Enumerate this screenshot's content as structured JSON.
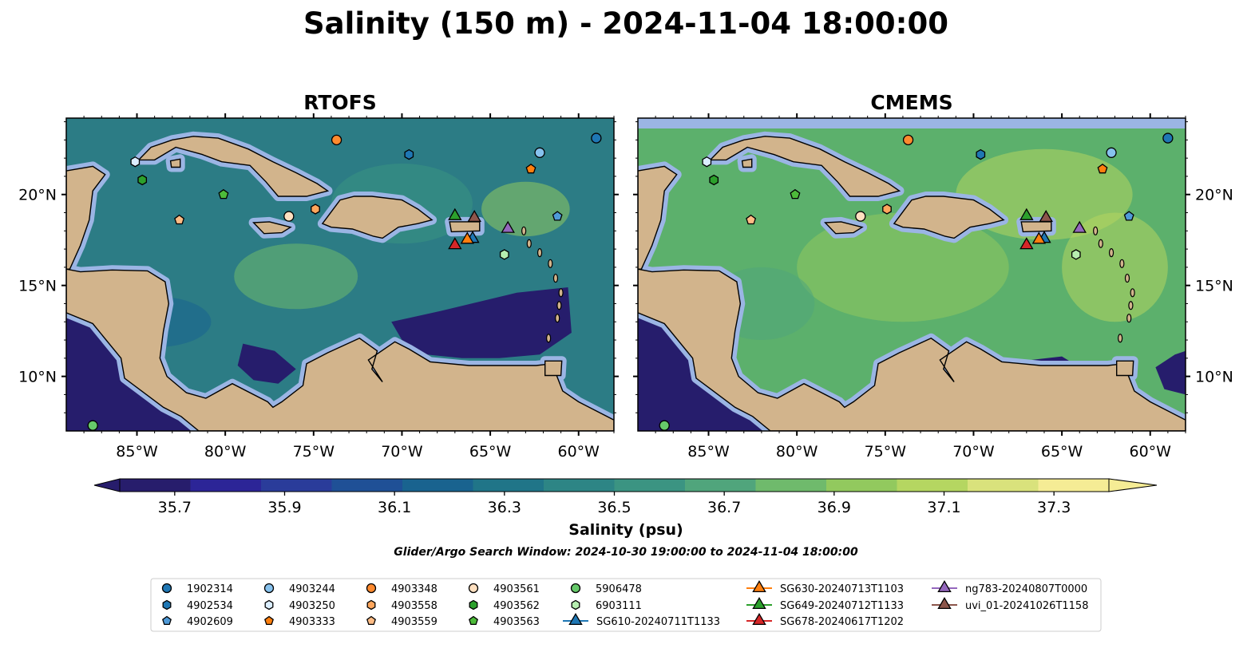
{
  "title": "Salinity (150 m) - 2024-11-04 18:00:00",
  "window_note": "Glider/Argo Search Window: 2024-10-30 19:00:00 to 2024-11-04 18:00:00",
  "extent": {
    "lon": [
      -89,
      -58
    ],
    "lat": [
      7,
      24.2
    ]
  },
  "colors": {
    "land": "#d2b48c",
    "shelf": "#9bb5e4",
    "deep_low": "#261d6c",
    "coast": "#000000",
    "river": "#a9c2e6"
  },
  "panels": [
    {
      "name": "RTOFS",
      "background": "#2c7c85"
    },
    {
      "name": "CMEMS",
      "background": "#5cb06c"
    }
  ],
  "lon_ticks": [
    {
      "value": -85,
      "label": "85°W"
    },
    {
      "value": -80,
      "label": "80°W"
    },
    {
      "value": -75,
      "label": "75°W"
    },
    {
      "value": -70,
      "label": "70°W"
    },
    {
      "value": -65,
      "label": "65°W"
    },
    {
      "value": -60,
      "label": "60°W"
    }
  ],
  "lat_ticks": [
    {
      "value": 10,
      "label": "10°N"
    },
    {
      "value": 15,
      "label": "15°N"
    },
    {
      "value": 20,
      "label": "20°N"
    }
  ],
  "colorbar": {
    "label": "Salinity (psu)",
    "min": 35.6,
    "max": 37.4,
    "step": 0.1,
    "ticks": [
      {
        "value": 35.7,
        "label": "35.7"
      },
      {
        "value": 35.9,
        "label": "35.9"
      },
      {
        "value": 36.1,
        "label": "36.1"
      },
      {
        "value": 36.3,
        "label": "36.3"
      },
      {
        "value": 36.5,
        "label": "36.5"
      },
      {
        "value": 36.7,
        "label": "36.7"
      },
      {
        "value": 36.9,
        "label": "36.9"
      },
      {
        "value": 37.1,
        "label": "37.1"
      },
      {
        "value": 37.3,
        "label": "37.3"
      }
    ],
    "colors": [
      "#271d6c",
      "#2c2597",
      "#2a3c9a",
      "#1f5096",
      "#19638f",
      "#207588",
      "#2d8585",
      "#3b9482",
      "#50a57c",
      "#6fba6c",
      "#92c95e",
      "#b5d661",
      "#d9e27c",
      "#f5ec95"
    ]
  },
  "land": {
    "cuba": [
      [
        -84.9,
        21.9
      ],
      [
        -84.2,
        22.6
      ],
      [
        -83.0,
        23.0
      ],
      [
        -81.8,
        23.2
      ],
      [
        -80.4,
        23.1
      ],
      [
        -78.7,
        22.5
      ],
      [
        -77.3,
        21.8
      ],
      [
        -76.0,
        21.2
      ],
      [
        -74.8,
        20.6
      ],
      [
        -74.2,
        20.2
      ],
      [
        -75.4,
        19.9
      ],
      [
        -77.0,
        19.9
      ],
      [
        -77.7,
        20.7
      ],
      [
        -78.6,
        21.6
      ],
      [
        -80.2,
        21.8
      ],
      [
        -81.3,
        22.2
      ],
      [
        -82.8,
        22.6
      ],
      [
        -84.0,
        21.9
      ]
    ],
    "isla_juventud": [
      [
        -83.1,
        21.85
      ],
      [
        -82.55,
        21.95
      ],
      [
        -82.55,
        21.5
      ],
      [
        -83.05,
        21.5
      ]
    ],
    "hispaniola": [
      [
        -74.5,
        18.4
      ],
      [
        -73.5,
        19.7
      ],
      [
        -72.7,
        19.9
      ],
      [
        -71.7,
        19.9
      ],
      [
        -70.0,
        19.7
      ],
      [
        -69.1,
        19.2
      ],
      [
        -68.3,
        18.6
      ],
      [
        -69.1,
        18.4
      ],
      [
        -70.2,
        18.2
      ],
      [
        -71.1,
        17.6
      ],
      [
        -71.6,
        17.7
      ],
      [
        -72.8,
        18.1
      ],
      [
        -74.0,
        18.2
      ]
    ],
    "jamaica": [
      [
        -78.4,
        18.45
      ],
      [
        -77.5,
        18.5
      ],
      [
        -76.3,
        18.2
      ],
      [
        -76.8,
        17.9
      ],
      [
        -77.8,
        17.85
      ]
    ],
    "puerto_rico": [
      [
        -67.3,
        18.5
      ],
      [
        -65.6,
        18.5
      ],
      [
        -65.6,
        18.0
      ],
      [
        -67.2,
        17.95
      ]
    ],
    "yucatan": [
      [
        -89.0,
        21.3
      ],
      [
        -87.5,
        21.55
      ],
      [
        -86.8,
        21.1
      ],
      [
        -87.5,
        20.2
      ],
      [
        -87.7,
        18.6
      ],
      [
        -88.2,
        17.2
      ],
      [
        -88.8,
        15.9
      ],
      [
        -89.0,
        15.9
      ]
    ],
    "central_america": [
      [
        -89.0,
        15.9
      ],
      [
        -88.2,
        15.75
      ],
      [
        -86.4,
        15.85
      ],
      [
        -84.4,
        15.8
      ],
      [
        -83.4,
        15.2
      ],
      [
        -83.2,
        14.0
      ],
      [
        -83.5,
        12.5
      ],
      [
        -83.7,
        11.0
      ],
      [
        -83.3,
        10.0
      ],
      [
        -82.2,
        9.1
      ],
      [
        -81.1,
        8.8
      ],
      [
        -79.6,
        9.6
      ],
      [
        -77.6,
        8.6
      ],
      [
        -77.3,
        8.3
      ],
      [
        -76.8,
        8.6
      ],
      [
        -75.6,
        9.5
      ],
      [
        -75.4,
        10.7
      ],
      [
        -74.2,
        11.3
      ],
      [
        -72.4,
        12.1
      ],
      [
        -71.4,
        11.4
      ],
      [
        -71.7,
        10.4
      ],
      [
        -71.1,
        9.7
      ],
      [
        -71.9,
        10.9
      ],
      [
        -70.4,
        11.9
      ],
      [
        -69.6,
        11.5
      ],
      [
        -68.4,
        10.8
      ],
      [
        -66.2,
        10.6
      ],
      [
        -64.2,
        10.6
      ],
      [
        -62.4,
        10.6
      ],
      [
        -61.5,
        10.7
      ],
      [
        -60.9,
        9.2
      ],
      [
        -60.0,
        8.6
      ],
      [
        -58.0,
        7.6
      ],
      [
        -58.0,
        7.0
      ],
      [
        -81.5,
        7.0
      ],
      [
        -82.5,
        7.8
      ],
      [
        -83.5,
        8.3
      ],
      [
        -85.7,
        9.9
      ],
      [
        -85.9,
        11.0
      ],
      [
        -87.5,
        12.9
      ],
      [
        -89.0,
        13.5
      ]
    ],
    "trinidad": [
      [
        -61.9,
        10.85
      ],
      [
        -60.95,
        10.85
      ],
      [
        -61.0,
        10.05
      ],
      [
        -61.9,
        10.05
      ]
    ]
  },
  "deep_regions": {
    "rtofs": [
      [
        [
          -89.0,
          13.5
        ],
        [
          -87.5,
          12.9
        ],
        [
          -85.9,
          11.0
        ],
        [
          -85.7,
          9.9
        ],
        [
          -83.5,
          8.3
        ],
        [
          -82.5,
          7.8
        ],
        [
          -81.5,
          7.0
        ],
        [
          -89.0,
          7.0
        ]
      ],
      [
        [
          -67.8,
          13.6
        ],
        [
          -63.5,
          14.6
        ],
        [
          -60.6,
          14.9
        ],
        [
          -60.4,
          12.4
        ],
        [
          -62.2,
          11.2
        ],
        [
          -64.5,
          11.0
        ],
        [
          -66.6,
          11.0
        ],
        [
          -68.6,
          11.2
        ],
        [
          -70.0,
          12.0
        ],
        [
          -70.6,
          13.0
        ]
      ],
      [
        [
          -79.0,
          11.8
        ],
        [
          -77.2,
          11.4
        ],
        [
          -76.0,
          10.4
        ],
        [
          -77.0,
          9.6
        ],
        [
          -78.4,
          9.8
        ],
        [
          -79.3,
          10.6
        ]
      ]
    ],
    "cmems": [
      [
        [
          -89.0,
          13.5
        ],
        [
          -87.5,
          12.9
        ],
        [
          -85.9,
          11.0
        ],
        [
          -85.7,
          9.9
        ],
        [
          -83.5,
          8.3
        ],
        [
          -82.5,
          7.8
        ],
        [
          -81.5,
          7.0
        ],
        [
          -89.0,
          7.0
        ]
      ],
      [
        [
          -59.7,
          10.5
        ],
        [
          -58.6,
          11.2
        ],
        [
          -58.0,
          11.4
        ],
        [
          -58.0,
          9.0
        ],
        [
          -59.2,
          9.3
        ]
      ],
      [
        [
          -66.8,
          10.9
        ],
        [
          -65.0,
          11.1
        ],
        [
          -64.5,
          10.8
        ],
        [
          -65.4,
          10.6
        ]
      ]
    ]
  },
  "argo_floats": [
    {
      "id": "1902314",
      "color": "#1f77b4",
      "marker": "circle",
      "lon": -59.0,
      "lat": 23.1
    },
    {
      "id": "4902534",
      "color": "#1f77b4",
      "marker": "hexagon",
      "lon": -69.6,
      "lat": 22.2
    },
    {
      "id": "4902609",
      "color": "#4f9ad8",
      "marker": "pentagon",
      "lon": -61.2,
      "lat": 18.8
    },
    {
      "id": "4903244",
      "color": "#87c2ee",
      "marker": "circle",
      "lon": -62.2,
      "lat": 22.3
    },
    {
      "id": "4903250",
      "color": "#dbeeff",
      "marker": "hexagon",
      "lon": -85.1,
      "lat": 21.8
    },
    {
      "id": "4903333",
      "color": "#ff7f0e",
      "marker": "pentagon",
      "lon": -62.7,
      "lat": 21.4
    },
    {
      "id": "4903348",
      "color": "#ff8a2e",
      "marker": "circle",
      "lon": -73.7,
      "lat": 23.0
    },
    {
      "id": "4903558",
      "color": "#ffa65c",
      "marker": "hexagon",
      "lon": -74.9,
      "lat": 19.2
    },
    {
      "id": "4903559",
      "color": "#ffbc85",
      "marker": "pentagon",
      "lon": -82.6,
      "lat": 18.6
    },
    {
      "id": "4903561",
      "color": "#ffe0c0",
      "marker": "circle",
      "lon": -76.4,
      "lat": 18.8
    },
    {
      "id": "4903562",
      "color": "#2ca02c",
      "marker": "hexagon",
      "lon": -84.7,
      "lat": 20.8
    },
    {
      "id": "4903563",
      "color": "#4dbb3a",
      "marker": "pentagon",
      "lon": -80.1,
      "lat": 20.0
    },
    {
      "id": "5906478",
      "color": "#66c96a",
      "marker": "circle",
      "lon": -87.5,
      "lat": 7.3
    },
    {
      "id": "6903111",
      "color": "#b6eeb0",
      "marker": "hexagon",
      "lon": -64.2,
      "lat": 16.7
    }
  ],
  "gliders": [
    {
      "id": "SG610-20240711T1133",
      "color": "#1f77b4",
      "lon": -66.0,
      "lat": 17.65
    },
    {
      "id": "SG630-20240713T1103",
      "color": "#ff7f0e",
      "lon": -66.3,
      "lat": 17.6
    },
    {
      "id": "SG649-20240712T1133",
      "color": "#2ca02c",
      "lon": -67.0,
      "lat": 18.9
    },
    {
      "id": "SG678-20240617T1202",
      "color": "#d62728",
      "lon": -67.0,
      "lat": 17.3
    },
    {
      "id": "ng783-20240807T0000",
      "color": "#9467bd",
      "lon": -64.0,
      "lat": 18.2
    },
    {
      "id": "uvi_01-20241026T1158",
      "color": "#8c564b",
      "lon": -65.9,
      "lat": 18.8
    }
  ],
  "legend": [
    {
      "label": "1902314",
      "color": "#1f77b4",
      "marker": "circle"
    },
    {
      "label": "4902534",
      "color": "#1f77b4",
      "marker": "hexagon"
    },
    {
      "label": "4902609",
      "color": "#4f9ad8",
      "marker": "pentagon"
    },
    {
      "label": "4903244",
      "color": "#87c2ee",
      "marker": "circle"
    },
    {
      "label": "4903250",
      "color": "#dbeeff",
      "marker": "hexagon"
    },
    {
      "label": "4903333",
      "color": "#ff7f0e",
      "marker": "pentagon"
    },
    {
      "label": "4903348",
      "color": "#ff8a2e",
      "marker": "circle"
    },
    {
      "label": "4903558",
      "color": "#ffa65c",
      "marker": "hexagon"
    },
    {
      "label": "4903559",
      "color": "#ffbc85",
      "marker": "pentagon"
    },
    {
      "label": "4903561",
      "color": "#ffe0c0",
      "marker": "circle"
    },
    {
      "label": "4903562",
      "color": "#2ca02c",
      "marker": "hexagon"
    },
    {
      "label": "4903563",
      "color": "#4dbb3a",
      "marker": "pentagon"
    },
    {
      "label": "5906478",
      "color": "#66c96a",
      "marker": "circle"
    },
    {
      "label": "6903111",
      "color": "#b6eeb0",
      "marker": "hexagon"
    },
    {
      "label": "SG610-20240711T1133",
      "color": "#1f77b4",
      "marker": "triangle-line"
    },
    {
      "label": "SG630-20240713T1103",
      "color": "#ff7f0e",
      "marker": "triangle-line"
    },
    {
      "label": "SG649-20240712T1133",
      "color": "#2ca02c",
      "marker": "triangle-line"
    },
    {
      "label": "SG678-20240617T1202",
      "color": "#d62728",
      "marker": "triangle-line"
    },
    {
      "label": "ng783-20240807T0000",
      "color": "#9467bd",
      "marker": "triangle-line"
    },
    {
      "label": "uvi_01-20241026T1158",
      "color": "#8c564b",
      "marker": "triangle-line"
    }
  ]
}
